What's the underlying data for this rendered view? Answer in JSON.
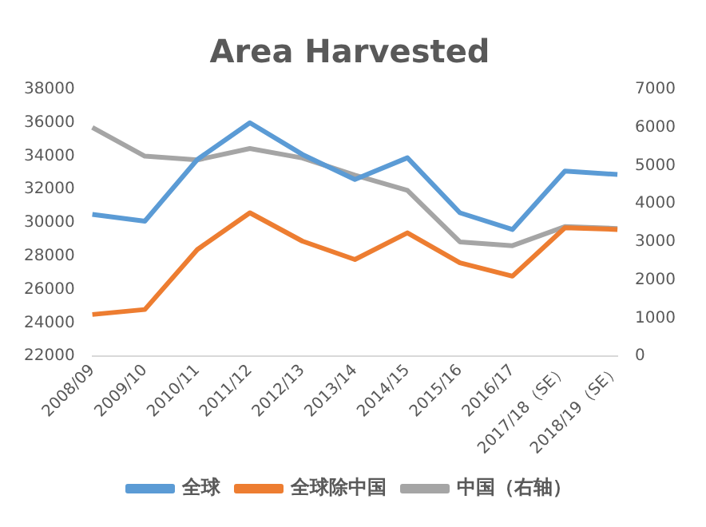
{
  "chart_data": {
    "type": "line",
    "title": "Area Harvested",
    "categories": [
      "2008/09",
      "2009/10",
      "2010/11",
      "2011/12",
      "2012/13",
      "2013/14",
      "2014/15",
      "2015/16",
      "2016/17",
      "2017/18（SE）",
      "2018/19（SE）"
    ],
    "series": [
      {
        "name": "全球",
        "color": "#5b9bd5",
        "values": [
          30500,
          30100,
          33800,
          36000,
          34100,
          32600,
          33900,
          30600,
          29600,
          33100,
          32900
        ]
      },
      {
        "name": "全球除中国",
        "color": "#ed7d31",
        "values": [
          24500,
          24800,
          28400,
          30600,
          28900,
          27800,
          29400,
          27600,
          26800,
          29700,
          29600
        ]
      },
      {
        "name": "中国（右轴）",
        "color": "#a5a5a5",
        "axis": "y2",
        "values": [
          6000,
          5250,
          5150,
          5450,
          5200,
          4750,
          4350,
          3000,
          2900,
          3400,
          3350
        ]
      }
    ],
    "ylim": [
      22000,
      38000
    ],
    "yticks": [
      22000,
      24000,
      26000,
      28000,
      30000,
      32000,
      34000,
      36000,
      38000
    ],
    "y2lim": [
      0,
      7000
    ],
    "y2ticks": [
      0,
      1000,
      2000,
      3000,
      4000,
      5000,
      6000,
      7000
    ],
    "grid": false,
    "legend": "bottom",
    "marker": "none"
  }
}
